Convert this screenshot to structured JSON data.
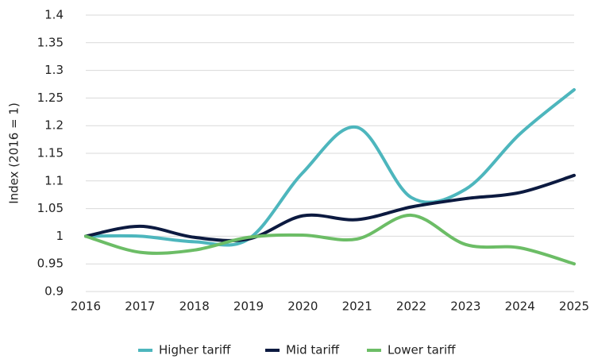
{
  "chart_data": {
    "type": "line",
    "y_label": "Index (2016 = 1)",
    "x": [
      2016,
      2017,
      2018,
      2019,
      2020,
      2021,
      2022,
      2023,
      2024,
      2025
    ],
    "xlim": [
      2016,
      2025
    ],
    "xticks": [
      2016,
      2017,
      2018,
      2019,
      2020,
      2021,
      2022,
      2023,
      2024,
      2025
    ],
    "ylim": [
      0.9,
      1.4
    ],
    "yticks": [
      0.9,
      0.95,
      1,
      1.05,
      1.1,
      1.15,
      1.2,
      1.25,
      1.3,
      1.35,
      1.4
    ],
    "grid": true,
    "legend": "bottom",
    "series": [
      {
        "name": "Higher tariff",
        "color": "#4db6bd",
        "values": [
          1,
          1.0,
          0.99,
          0.995,
          1.115,
          1.197,
          1.07,
          1.085,
          1.185,
          1.265
        ]
      },
      {
        "name": "Mid tariff",
        "color": "#0c1a40",
        "values": [
          1,
          1.018,
          0.998,
          0.995,
          1.037,
          1.03,
          1.053,
          1.068,
          1.079,
          1.11
        ]
      },
      {
        "name": "Lower tariff",
        "color": "#6cbd66",
        "values": [
          1,
          0.971,
          0.975,
          0.998,
          1.002,
          0.995,
          1.038,
          0.985,
          0.979,
          0.95
        ]
      }
    ]
  }
}
